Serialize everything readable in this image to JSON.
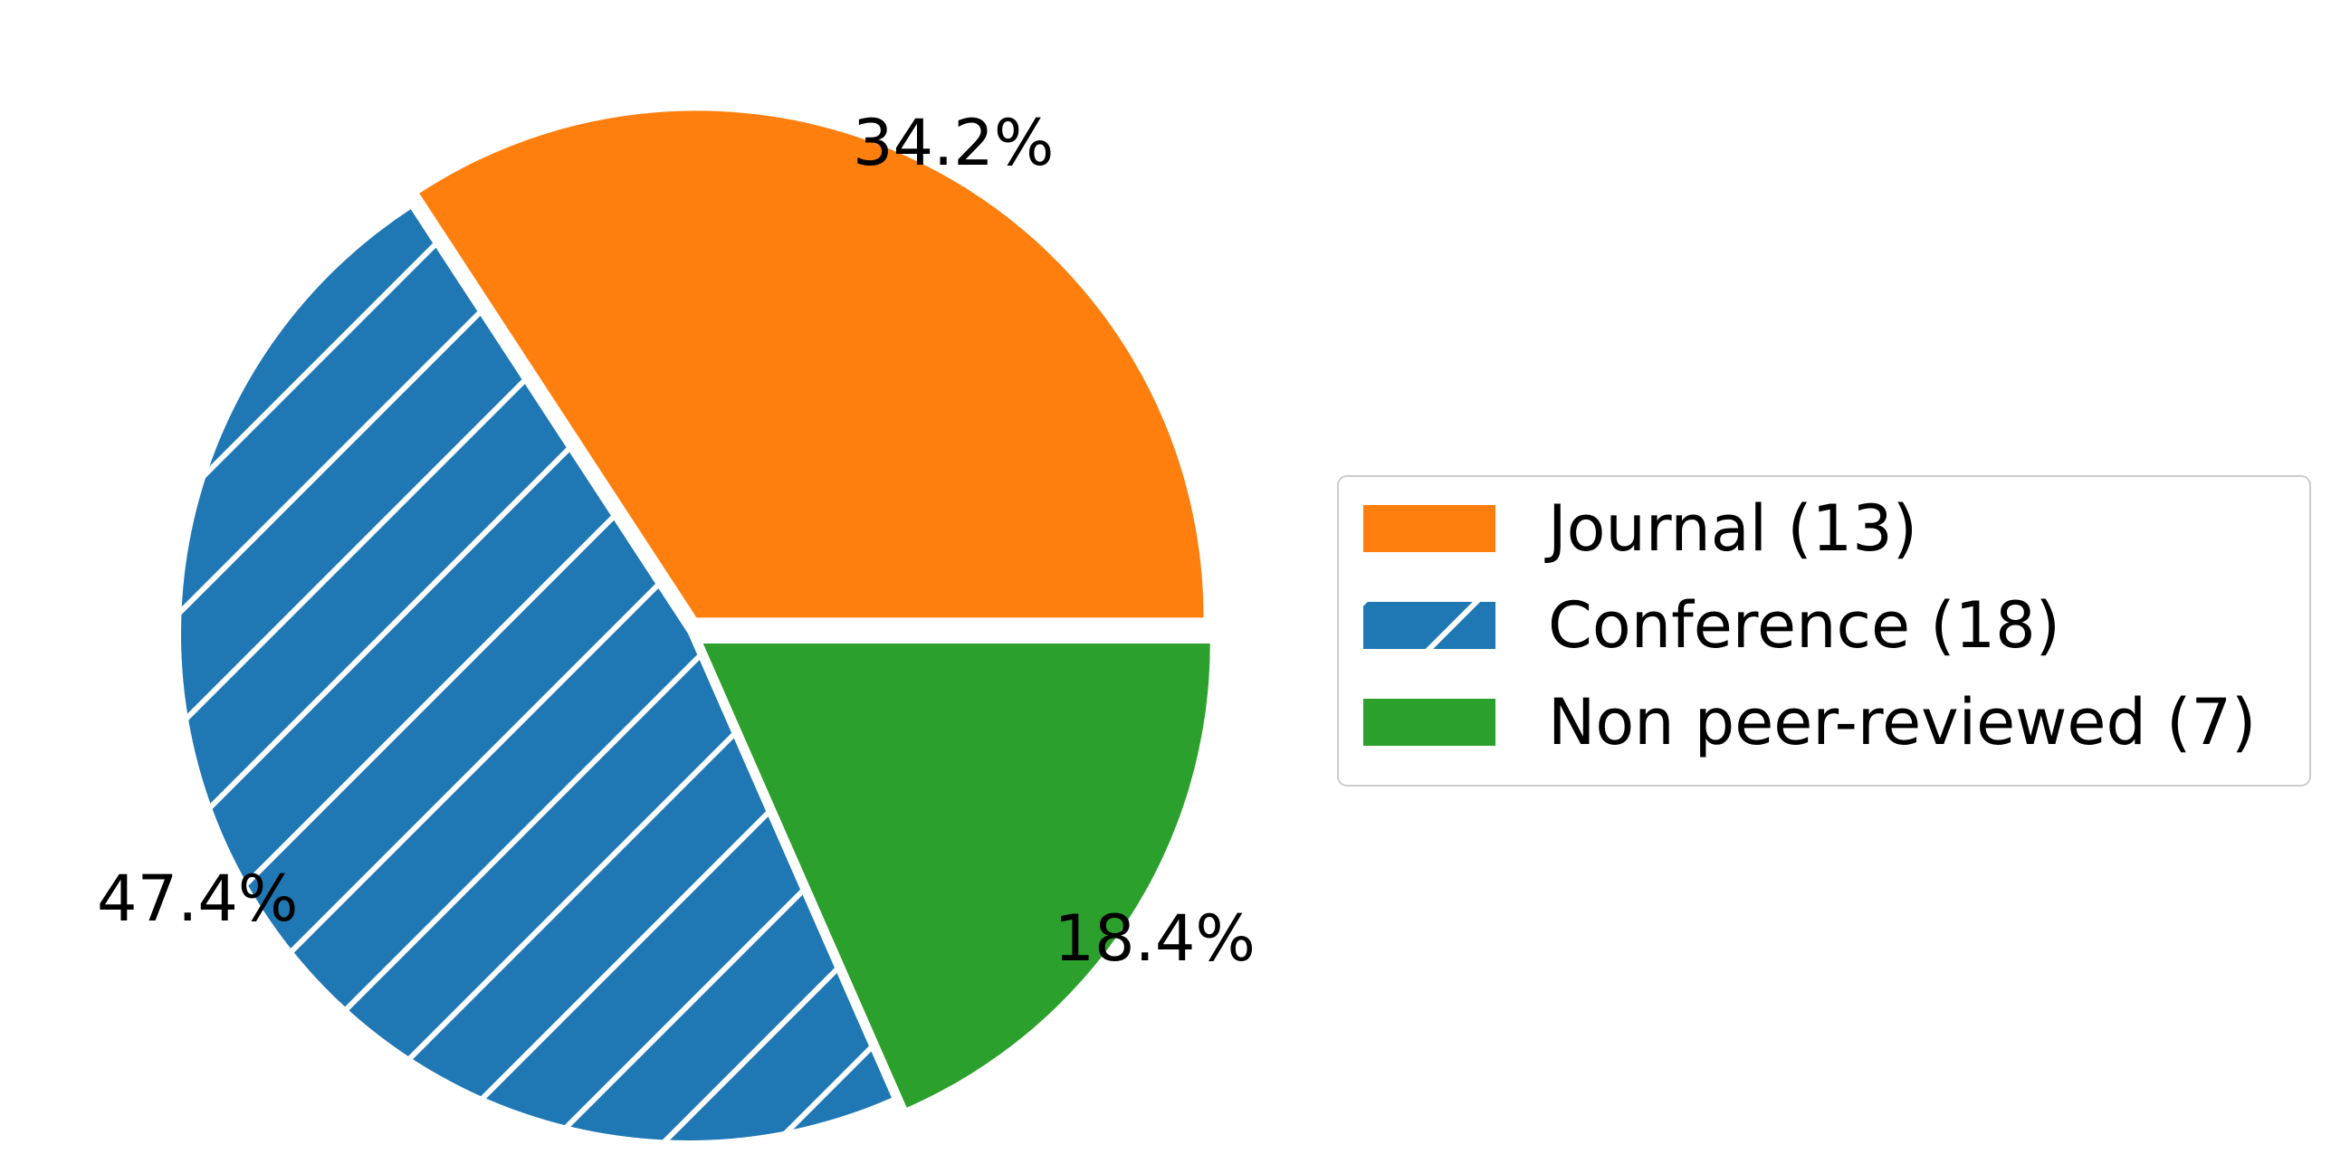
{
  "chart_data": {
    "type": "pie",
    "title": "",
    "slices": [
      {
        "label": "Journal (13)",
        "value": 13,
        "percent_label": "34.2%",
        "color": "#ff7f0e",
        "hatch": false,
        "exploded": true
      },
      {
        "label": "Conference (18)",
        "value": 18,
        "percent_label": "47.4%",
        "color": "#1f77b4",
        "hatch": true,
        "exploded": false
      },
      {
        "label": "Non peer-reviewed (7)",
        "value": 7,
        "percent_label": "18.4%",
        "color": "#2ca02c",
        "hatch": false,
        "exploded": true
      }
    ],
    "start_angle_deg": 0,
    "direction": "counterclockwise",
    "legend": {
      "placement": "right"
    }
  }
}
